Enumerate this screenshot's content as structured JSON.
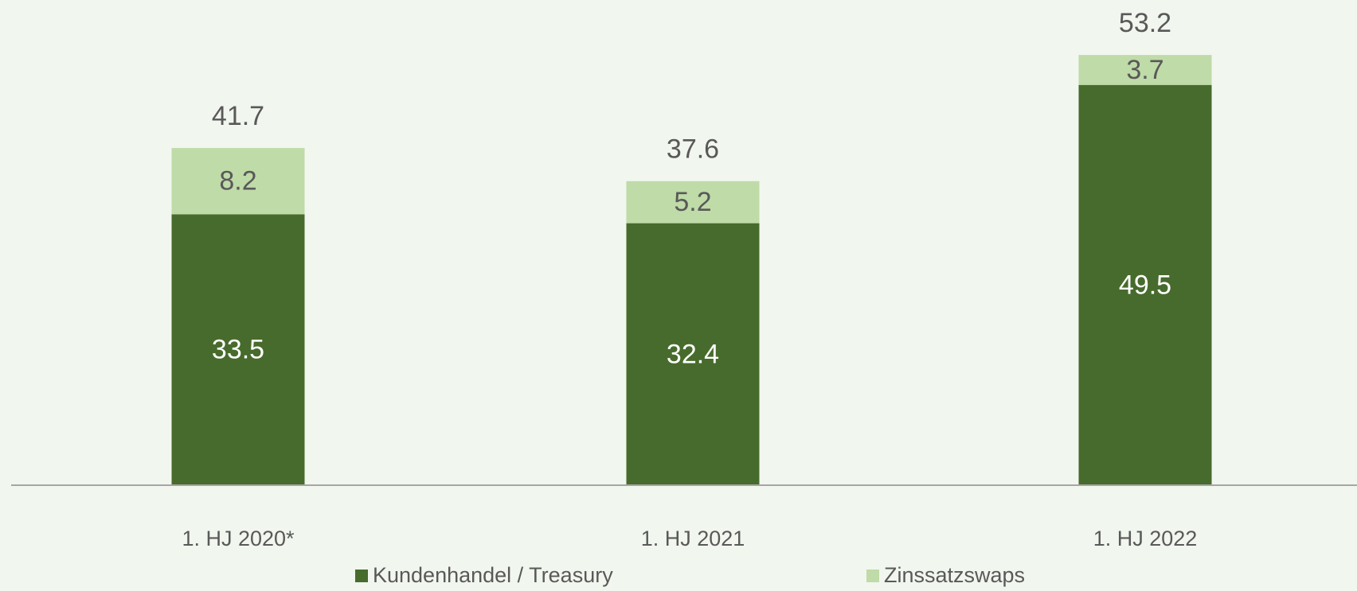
{
  "chart_data": {
    "type": "stacked_bar",
    "categories": [
      "1. HJ 2020*",
      "1. HJ 2021",
      "1. HJ 2022"
    ],
    "series": [
      {
        "name": "Kundenhandel / Treasury",
        "color": "#476b2c",
        "values": [
          33.5,
          32.4,
          49.5
        ]
      },
      {
        "name": "Zinssatzswaps",
        "color": "#bfdba8",
        "values": [
          8.2,
          5.2,
          3.7
        ]
      }
    ],
    "totals": [
      41.7,
      37.6,
      53.2
    ],
    "ylim": [
      0,
      60
    ]
  }
}
